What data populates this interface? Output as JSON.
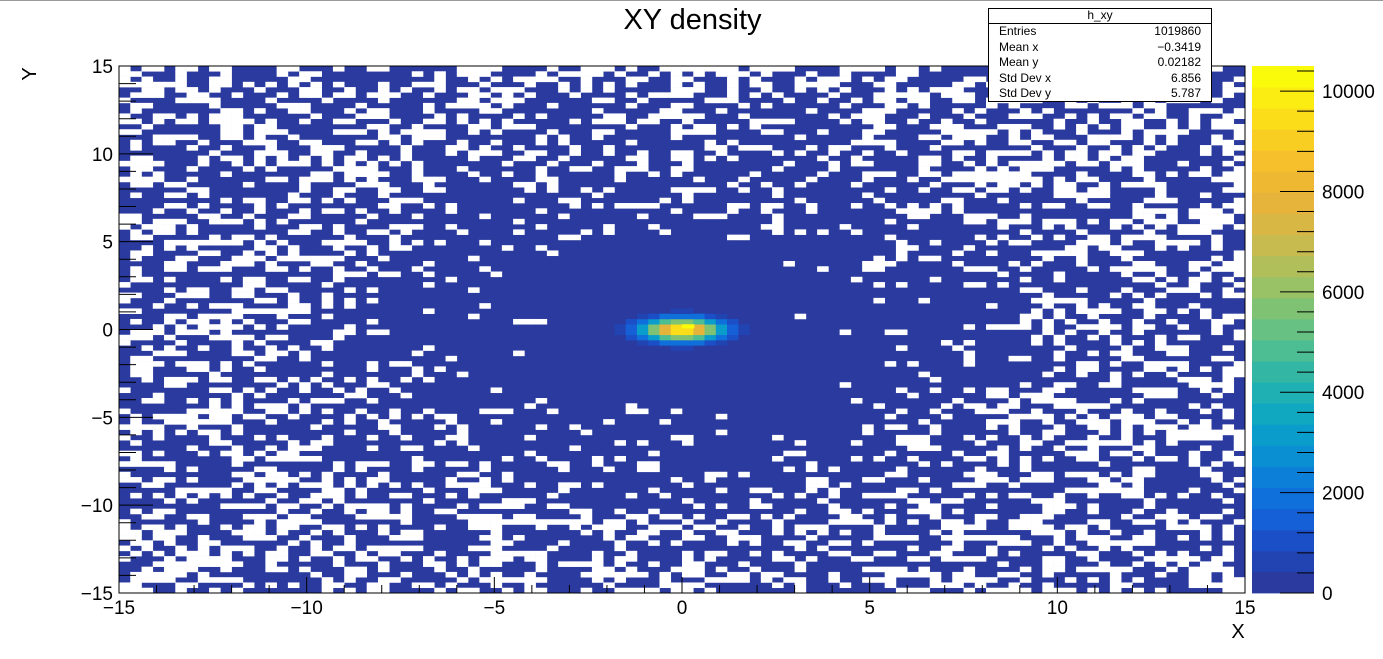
{
  "chart_data": {
    "type": "heatmap",
    "title": "XY density",
    "xlabel": "X",
    "ylabel": "Y",
    "xlim": [
      -15,
      15
    ],
    "ylim": [
      -15,
      15
    ],
    "x_ticks": [
      -15,
      -10,
      -5,
      0,
      5,
      10,
      15
    ],
    "y_ticks": [
      -15,
      -10,
      -5,
      0,
      5,
      10,
      15
    ],
    "x_tick_labels": [
      "−15",
      "−10",
      "−5",
      "0",
      "5",
      "10",
      "15"
    ],
    "y_tick_labels": [
      "−15",
      "−10",
      "−5",
      "0",
      "5",
      "10",
      "15"
    ],
    "bins": [
      100,
      100
    ],
    "z_range": [
      0,
      10500
    ],
    "z_ticks": [
      0,
      2000,
      4000,
      6000,
      8000,
      10000
    ],
    "z_tick_labels": [
      "0",
      "2000",
      "4000",
      "6000",
      "8000",
      "10000"
    ],
    "empty_color": "#ffffff",
    "base_color": "#2b3a9e",
    "peak": {
      "x": 0.15,
      "y": 0.15,
      "value": 10400
    },
    "palette": [
      "#2b3a9e",
      "#2244b2",
      "#1b4fc7",
      "#1560d6",
      "#0f6fdb",
      "#0c7fd8",
      "#0a8fd2",
      "#0a9cca",
      "#10a7c0",
      "#1fb0b3",
      "#33b7a4",
      "#4dbd93",
      "#66c182",
      "#80c273",
      "#99c266",
      "#b1bf5b",
      "#c7bb50",
      "#d9b745",
      "#e6b43b",
      "#efb833",
      "#f5c02b",
      "#f9ce22",
      "#fbdd1a",
      "#fbec12",
      "#fafa0b"
    ],
    "stats": {
      "name": "h_xy",
      "entries_label": "Entries",
      "entries": "1019860",
      "mean_x_label": "Mean x",
      "mean_x": "−0.3419",
      "mean_y_label": "Mean y",
      "mean_y": "0.02182",
      "std_x_label": "Std Dev x",
      "std_x": "6.856",
      "std_y_label": "Std Dev y",
      "std_y": "5.787"
    }
  }
}
